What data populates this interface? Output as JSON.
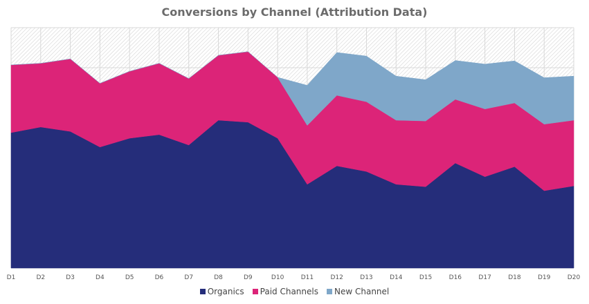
{
  "chart_data": {
    "type": "area",
    "stacked": true,
    "title": "Conversions by Channel (Attribution Data)",
    "xlabel": "",
    "ylabel": "",
    "categories": [
      "D1",
      "D2",
      "D3",
      "D4",
      "D5",
      "D6",
      "D7",
      "D8",
      "D9",
      "D10",
      "D11",
      "D12",
      "D13",
      "D14",
      "D15",
      "D16",
      "D17",
      "D18",
      "D19",
      "D20"
    ],
    "ylim": [
      0,
      600
    ],
    "y_tick_step": 100,
    "y_axis_labels_shown": false,
    "grid": true,
    "background": "hatched",
    "legend_position": "bottom",
    "series": [
      {
        "name": "Organics",
        "color": "#252d7a",
        "values": [
          338,
          352,
          341,
          302,
          324,
          333,
          307,
          369,
          364,
          324,
          209,
          255,
          241,
          209,
          203,
          262,
          228,
          253,
          193,
          205
        ]
      },
      {
        "name": "Paid Channels",
        "color": "#dc2478",
        "values": [
          169,
          159,
          181,
          159,
          167,
          178,
          166,
          162,
          176,
          152,
          147,
          176,
          174,
          160,
          164,
          159,
          169,
          159,
          166,
          164
        ]
      },
      {
        "name": "New Channel",
        "color": "#7fa7c9",
        "values": [
          0,
          0,
          0,
          0,
          0,
          0,
          0,
          0,
          0,
          0,
          100,
          107,
          114,
          110,
          103,
          97,
          112,
          105,
          116,
          110
        ]
      }
    ]
  }
}
